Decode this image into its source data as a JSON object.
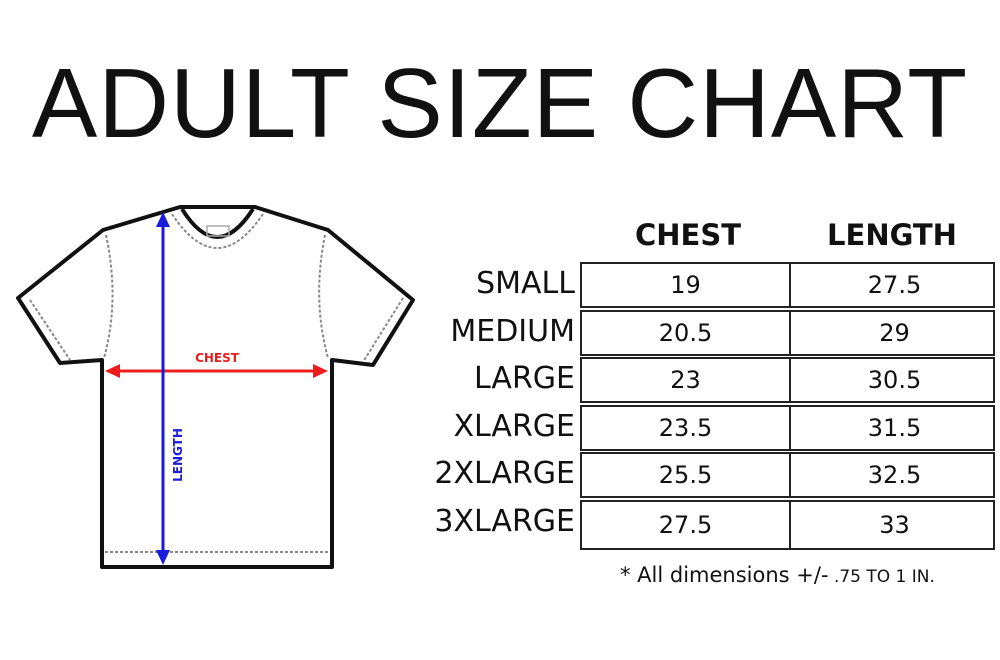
{
  "title": "ADULT SIZE CHART",
  "diagram": {
    "chest_label": "CHEST",
    "length_label": "LENGTH",
    "chest_color": "#ee1c1c",
    "length_color": "#1b1bdc"
  },
  "chart_data": {
    "type": "table",
    "title": "ADULT SIZE CHART",
    "columns": [
      "CHEST",
      "LENGTH"
    ],
    "rows": [
      {
        "size": "SMALL",
        "chest": "19",
        "length": "27.5"
      },
      {
        "size": "MEDIUM",
        "chest": "20.5",
        "length": "29"
      },
      {
        "size": "LARGE",
        "chest": "23",
        "length": "30.5"
      },
      {
        "size": "XLARGE",
        "chest": "23.5",
        "length": "31.5"
      },
      {
        "size": "2XLARGE",
        "chest": "25.5",
        "length": "32.5"
      },
      {
        "size": "3XLARGE",
        "chest": "27.5",
        "length": "33"
      }
    ]
  },
  "note": {
    "main": "* All dimensions +/-",
    "tolerance": " .75 TO 1 IN."
  }
}
